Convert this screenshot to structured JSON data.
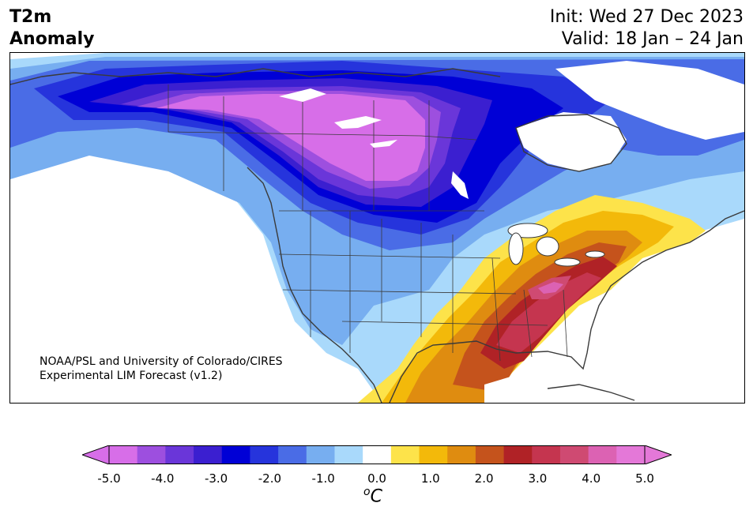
{
  "header": {
    "title_line1": "T2m",
    "title_line2": "Anomaly",
    "init_text": "Init: Wed 27 Dec 2023",
    "valid_text": "Valid: 18 Jan – 24 Jan"
  },
  "map": {
    "credit_line1": "NOAA/PSL and University of Colorado/CIRES",
    "credit_line2": "Experimental LIM Forecast (v1.2)"
  },
  "colorbar": {
    "unit_base": "C",
    "unit_prefix": "o",
    "ticks": [
      "-5.0",
      "-4.0",
      "-3.0",
      "-2.0",
      "-1.0",
      "0.0",
      "1.0",
      "2.0",
      "3.0",
      "4.0",
      "5.0"
    ],
    "levels": [
      -5.0,
      -4.5,
      -4.0,
      -3.5,
      -3.0,
      -2.5,
      -2.0,
      -1.5,
      -1.0,
      -0.5,
      0.5,
      1.0,
      1.5,
      2.0,
      2.5,
      3.0,
      3.5,
      4.0,
      4.5,
      5.0
    ],
    "colors": [
      "#d76ee8",
      "#9d4fdf",
      "#6a36d9",
      "#3b1fd0",
      "#0000d6",
      "#2634dc",
      "#4a6ce6",
      "#77aef0",
      "#a9d9fb",
      "#ffffff",
      "#fde34a",
      "#f3b90a",
      "#df8c10",
      "#c5531c",
      "#b02226",
      "#c5354f",
      "#cf4a72",
      "#dc62b3",
      "#e478d8"
    ],
    "under_color": "#d76ee8",
    "over_color": "#e478d8"
  }
}
